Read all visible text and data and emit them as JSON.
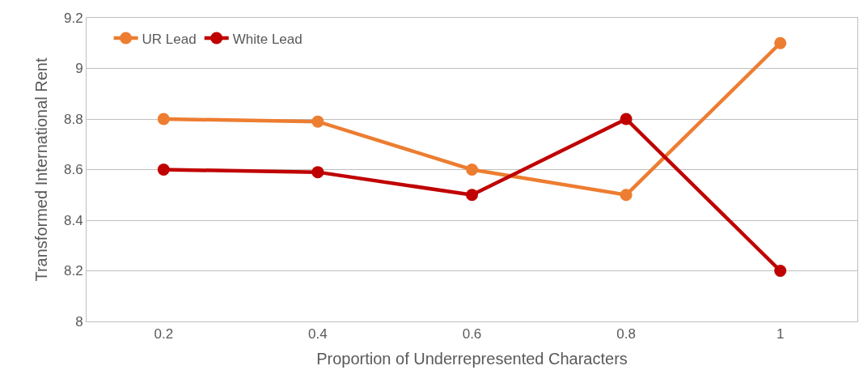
{
  "chart_data": {
    "type": "line",
    "xlabel": "Proportion of Underrepresented Characters",
    "ylabel": "Transformed International Rent",
    "categories": [
      "0.2",
      "0.4",
      "0.6",
      "0.8",
      "1"
    ],
    "series": [
      {
        "name": "UR Lead",
        "color": "#ed7d31",
        "values": [
          8.8,
          8.79,
          8.6,
          8.5,
          9.1
        ]
      },
      {
        "name": "White Lead",
        "color": "#c00000",
        "values": [
          8.6,
          8.59,
          8.5,
          8.8,
          8.2
        ]
      }
    ],
    "ylim": [
      8,
      9.2
    ],
    "yticks": [
      8,
      8.2,
      8.4,
      8.6,
      8.8,
      9,
      9.2
    ],
    "grid": "y",
    "legend": "top left",
    "marker": "circle",
    "line_style": "solid"
  }
}
